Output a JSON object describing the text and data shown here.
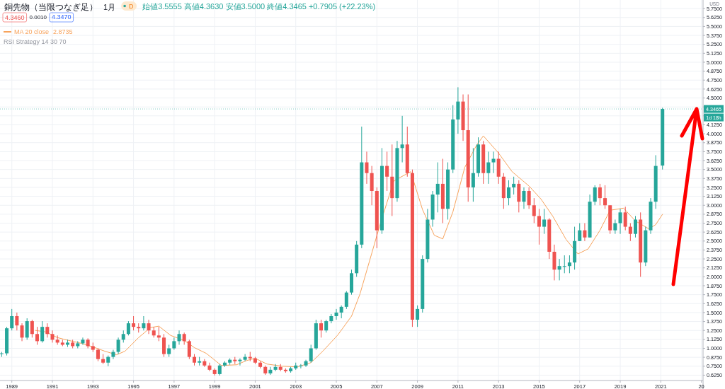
{
  "chart_data": {
    "type": "candlestick",
    "title": "銅先物（当限つなぎ足）",
    "subtitle": "1月",
    "ylabel": "USD",
    "annotations": [
      "D",
      "始値3.5555 高値4.3630 安値3.5000 終値4.3465 +0.7905 (+22.23%)",
      "4.3460",
      "0.0010",
      "4.3470",
      "2.8735",
      "RSI Strategy 14 30 70",
      "1d 18h"
    ],
    "x": [
      "1988-07",
      "1988-10",
      "1989-01",
      "1989-04",
      "1989-07",
      "1989-10",
      "1990-01",
      "1990-04",
      "1990-07",
      "1990-10",
      "1991-01",
      "1991-04",
      "1991-07",
      "1991-10",
      "1992-01",
      "1992-04",
      "1992-07",
      "1992-10",
      "1993-01",
      "1993-04",
      "1993-07",
      "1993-10",
      "1994-01",
      "1994-04",
      "1994-07",
      "1994-10",
      "1995-01",
      "1995-04",
      "1995-07",
      "1995-10",
      "1996-01",
      "1996-04",
      "1996-07",
      "1996-10",
      "1997-01",
      "1997-04",
      "1997-07",
      "1997-10",
      "1998-01",
      "1998-04",
      "1998-07",
      "1998-10",
      "1999-01",
      "1999-04",
      "1999-07",
      "1999-10",
      "2000-01",
      "2000-04",
      "2000-07",
      "2000-10",
      "2001-01",
      "2001-04",
      "2001-07",
      "2001-10",
      "2002-01",
      "2002-04",
      "2002-07",
      "2002-10",
      "2003-01",
      "2003-04",
      "2003-07",
      "2003-10",
      "2004-01",
      "2004-04",
      "2004-07",
      "2004-10",
      "2005-01",
      "2005-04",
      "2005-07",
      "2005-10",
      "2006-01",
      "2006-04",
      "2006-07",
      "2006-10",
      "2007-01",
      "2007-04",
      "2007-07",
      "2007-10",
      "2008-01",
      "2008-04",
      "2008-07",
      "2008-10",
      "2009-01",
      "2009-04",
      "2009-07",
      "2009-10",
      "2010-01",
      "2010-04",
      "2010-07",
      "2010-10",
      "2011-01",
      "2011-04",
      "2011-07",
      "2011-10",
      "2012-01",
      "2012-04",
      "2012-07",
      "2012-10",
      "2013-01",
      "2013-04",
      "2013-07",
      "2013-10",
      "2014-01",
      "2014-04",
      "2014-07",
      "2014-10",
      "2015-01",
      "2015-04",
      "2015-07",
      "2015-10",
      "2016-01",
      "2016-04",
      "2016-07",
      "2016-10",
      "2017-01",
      "2017-04",
      "2017-07",
      "2017-10",
      "2018-01",
      "2018-04",
      "2018-07",
      "2018-10",
      "2019-01",
      "2019-04",
      "2019-07",
      "2019-10",
      "2020-01",
      "2020-04",
      "2020-07",
      "2020-10",
      "2021-02"
    ],
    "ohlc": [
      [
        0.92,
        0.95,
        0.88,
        0.93
      ],
      [
        0.93,
        1.3,
        0.9,
        1.28
      ],
      [
        1.28,
        1.55,
        1.25,
        1.45
      ],
      [
        1.45,
        1.5,
        1.25,
        1.32
      ],
      [
        1.32,
        1.35,
        1.1,
        1.15
      ],
      [
        1.15,
        1.42,
        1.12,
        1.38
      ],
      [
        1.38,
        1.4,
        1.15,
        1.2
      ],
      [
        1.2,
        1.3,
        1.05,
        1.1
      ],
      [
        1.1,
        1.38,
        1.08,
        1.3
      ],
      [
        1.3,
        1.35,
        1.15,
        1.2
      ],
      [
        1.2,
        1.25,
        1.08,
        1.12
      ],
      [
        1.12,
        1.18,
        1.05,
        1.08
      ],
      [
        1.08,
        1.12,
        1.03,
        1.05
      ],
      [
        1.05,
        1.12,
        1.02,
        1.08
      ],
      [
        1.08,
        1.12,
        1.0,
        1.03
      ],
      [
        1.03,
        1.1,
        1.0,
        1.07
      ],
      [
        1.07,
        1.15,
        1.05,
        1.12
      ],
      [
        1.12,
        1.14,
        1.0,
        1.03
      ],
      [
        1.03,
        1.08,
        0.95,
        0.98
      ],
      [
        0.98,
        1.0,
        0.82,
        0.85
      ],
      [
        0.85,
        0.92,
        0.78,
        0.8
      ],
      [
        0.8,
        0.9,
        0.75,
        0.88
      ],
      [
        0.88,
        0.98,
        0.85,
        0.95
      ],
      [
        0.95,
        1.15,
        0.92,
        1.12
      ],
      [
        1.12,
        1.25,
        1.08,
        1.2
      ],
      [
        1.2,
        1.38,
        1.18,
        1.35
      ],
      [
        1.35,
        1.45,
        1.25,
        1.3
      ],
      [
        1.3,
        1.35,
        1.22,
        1.28
      ],
      [
        1.28,
        1.45,
        1.25,
        1.35
      ],
      [
        1.35,
        1.4,
        1.2,
        1.25
      ],
      [
        1.25,
        1.3,
        1.15,
        1.18
      ],
      [
        1.18,
        1.3,
        1.1,
        1.15
      ],
      [
        1.15,
        1.2,
        0.88,
        0.92
      ],
      [
        0.92,
        1.05,
        0.88,
        1.0
      ],
      [
        1.0,
        1.15,
        0.98,
        1.1
      ],
      [
        1.1,
        1.25,
        1.05,
        1.2
      ],
      [
        1.2,
        1.22,
        1.05,
        1.1
      ],
      [
        1.1,
        1.12,
        0.85,
        0.88
      ],
      [
        0.88,
        0.92,
        0.76,
        0.8
      ],
      [
        0.8,
        0.88,
        0.76,
        0.82
      ],
      [
        0.82,
        0.85,
        0.74,
        0.76
      ],
      [
        0.76,
        0.8,
        0.68,
        0.7
      ],
      [
        0.7,
        0.72,
        0.62,
        0.64
      ],
      [
        0.64,
        0.78,
        0.62,
        0.76
      ],
      [
        0.76,
        0.82,
        0.74,
        0.8
      ],
      [
        0.8,
        0.86,
        0.77,
        0.84
      ],
      [
        0.84,
        0.88,
        0.78,
        0.82
      ],
      [
        0.82,
        0.86,
        0.76,
        0.84
      ],
      [
        0.84,
        0.92,
        0.82,
        0.88
      ],
      [
        0.88,
        0.95,
        0.82,
        0.86
      ],
      [
        0.86,
        0.88,
        0.78,
        0.8
      ],
      [
        0.8,
        0.82,
        0.72,
        0.74
      ],
      [
        0.74,
        0.76,
        0.63,
        0.65
      ],
      [
        0.65,
        0.74,
        0.63,
        0.7
      ],
      [
        0.7,
        0.78,
        0.68,
        0.74
      ],
      [
        0.74,
        0.78,
        0.68,
        0.7
      ],
      [
        0.7,
        0.72,
        0.66,
        0.68
      ],
      [
        0.68,
        0.74,
        0.66,
        0.72
      ],
      [
        0.72,
        0.8,
        0.7,
        0.76
      ],
      [
        0.76,
        0.78,
        0.72,
        0.76
      ],
      [
        0.76,
        0.84,
        0.74,
        0.82
      ],
      [
        0.82,
        1.05,
        0.8,
        1.0
      ],
      [
        1.0,
        1.4,
        0.98,
        1.35
      ],
      [
        1.35,
        1.4,
        1.15,
        1.25
      ],
      [
        1.25,
        1.4,
        1.22,
        1.38
      ],
      [
        1.38,
        1.48,
        1.35,
        1.45
      ],
      [
        1.45,
        1.55,
        1.4,
        1.5
      ],
      [
        1.5,
        1.6,
        1.42,
        1.58
      ],
      [
        1.58,
        1.8,
        1.55,
        1.78
      ],
      [
        1.78,
        2.1,
        1.75,
        2.05
      ],
      [
        2.05,
        2.5,
        2.0,
        2.45
      ],
      [
        2.45,
        4.1,
        2.4,
        3.6
      ],
      [
        3.6,
        3.75,
        3.3,
        3.45
      ],
      [
        3.45,
        3.55,
        3.0,
        3.2
      ],
      [
        3.2,
        3.25,
        2.4,
        2.65
      ],
      [
        2.65,
        3.8,
        2.6,
        3.55
      ],
      [
        3.55,
        3.75,
        3.2,
        3.4
      ],
      [
        3.4,
        3.85,
        2.85,
        3.1
      ],
      [
        3.1,
        3.9,
        3.05,
        3.8
      ],
      [
        3.8,
        4.25,
        3.6,
        3.85
      ],
      [
        3.85,
        4.1,
        3.4,
        3.45
      ],
      [
        3.45,
        3.5,
        1.3,
        1.4
      ],
      [
        1.4,
        1.6,
        1.3,
        1.55
      ],
      [
        1.55,
        2.3,
        1.5,
        2.25
      ],
      [
        2.25,
        2.95,
        2.2,
        2.8
      ],
      [
        2.8,
        3.2,
        2.7,
        3.15
      ],
      [
        3.15,
        3.6,
        2.9,
        3.3
      ],
      [
        3.3,
        3.65,
        2.75,
        2.95
      ],
      [
        2.95,
        3.6,
        2.8,
        3.5
      ],
      [
        3.5,
        4.4,
        3.45,
        4.2
      ],
      [
        4.2,
        4.65,
        4.0,
        4.45
      ],
      [
        4.45,
        4.55,
        3.9,
        4.05
      ],
      [
        4.05,
        4.55,
        3.05,
        3.25
      ],
      [
        3.25,
        3.8,
        3.05,
        3.45
      ],
      [
        3.45,
        3.95,
        3.4,
        3.85
      ],
      [
        3.85,
        3.9,
        3.3,
        3.45
      ],
      [
        3.45,
        3.75,
        3.3,
        3.6
      ],
      [
        3.6,
        3.75,
        3.45,
        3.65
      ],
      [
        3.65,
        3.75,
        3.3,
        3.4
      ],
      [
        3.4,
        3.45,
        2.95,
        3.1
      ],
      [
        3.1,
        3.35,
        3.0,
        3.25
      ],
      [
        3.25,
        3.4,
        3.15,
        3.3
      ],
      [
        3.3,
        3.35,
        2.9,
        3.05
      ],
      [
        3.05,
        3.25,
        2.95,
        3.2
      ],
      [
        3.2,
        3.25,
        2.95,
        3.0
      ],
      [
        3.0,
        3.1,
        2.75,
        2.85
      ],
      [
        2.85,
        2.95,
        2.45,
        2.7
      ],
      [
        2.7,
        2.95,
        2.6,
        2.8
      ],
      [
        2.8,
        2.82,
        2.25,
        2.35
      ],
      [
        2.35,
        2.45,
        1.95,
        2.1
      ],
      [
        2.1,
        2.25,
        1.95,
        2.15
      ],
      [
        2.15,
        2.3,
        2.05,
        2.15
      ],
      [
        2.15,
        2.3,
        2.05,
        2.2
      ],
      [
        2.2,
        2.7,
        2.1,
        2.5
      ],
      [
        2.5,
        2.75,
        2.5,
        2.65
      ],
      [
        2.65,
        2.75,
        2.5,
        2.55
      ],
      [
        2.55,
        3.15,
        2.55,
        3.05
      ],
      [
        3.05,
        3.28,
        3.0,
        3.25
      ],
      [
        3.25,
        3.3,
        3.0,
        3.1
      ],
      [
        3.1,
        3.28,
        2.95,
        3.0
      ],
      [
        3.0,
        3.0,
        2.6,
        2.65
      ],
      [
        2.65,
        2.8,
        2.6,
        2.75
      ],
      [
        2.75,
        2.95,
        2.6,
        2.9
      ],
      [
        2.9,
        2.98,
        2.65,
        2.7
      ],
      [
        2.7,
        2.75,
        2.5,
        2.6
      ],
      [
        2.6,
        2.85,
        2.55,
        2.8
      ],
      [
        2.8,
        2.9,
        2.0,
        2.2
      ],
      [
        2.2,
        2.7,
        2.15,
        2.65
      ],
      [
        2.65,
        3.1,
        2.6,
        3.05
      ],
      [
        3.05,
        3.7,
        2.95,
        3.55
      ],
      [
        3.5555,
        4.363,
        3.5,
        4.3465
      ]
    ],
    "colors": [
      "#26a69a",
      "#26a69a",
      "#26a69a",
      "#ef5350",
      "#ef5350",
      "#26a69a",
      "#ef5350",
      "#ef5350",
      "#26a69a",
      "#ef5350",
      "#ef5350",
      "#ef5350",
      "#ef5350",
      "#26a69a",
      "#ef5350",
      "#26a69a",
      "#26a69a",
      "#ef5350",
      "#ef5350",
      "#ef5350",
      "#ef5350",
      "#26a69a",
      "#26a69a",
      "#26a69a",
      "#26a69a",
      "#26a69a",
      "#ef5350",
      "#ef5350",
      "#26a69a",
      "#ef5350",
      "#ef5350",
      "#ef5350",
      "#ef5350",
      "#26a69a",
      "#26a69a",
      "#26a69a",
      "#ef5350",
      "#ef5350",
      "#ef5350",
      "#26a69a",
      "#ef5350",
      "#ef5350",
      "#ef5350",
      "#26a69a",
      "#26a69a",
      "#26a69a",
      "#ef5350",
      "#26a69a",
      "#26a69a",
      "#ef5350",
      "#ef5350",
      "#ef5350",
      "#ef5350",
      "#26a69a",
      "#26a69a",
      "#ef5350",
      "#ef5350",
      "#26a69a",
      "#26a69a",
      "#26a69a",
      "#26a69a",
      "#26a69a",
      "#26a69a",
      "#ef5350",
      "#26a69a",
      "#26a69a",
      "#26a69a",
      "#26a69a",
      "#26a69a",
      "#26a69a",
      "#26a69a",
      "#26a69a",
      "#ef5350",
      "#ef5350",
      "#ef5350",
      "#26a69a",
      "#ef5350",
      "#ef5350",
      "#26a69a",
      "#26a69a",
      "#ef5350",
      "#ef5350",
      "#26a69a",
      "#26a69a",
      "#26a69a",
      "#26a69a",
      "#26a69a",
      "#ef5350",
      "#26a69a",
      "#26a69a",
      "#26a69a",
      "#ef5350",
      "#ef5350",
      "#26a69a",
      "#26a69a",
      "#ef5350",
      "#26a69a",
      "#26a69a",
      "#ef5350",
      "#ef5350",
      "#26a69a",
      "#26a69a",
      "#ef5350",
      "#26a69a",
      "#ef5350",
      "#ef5350",
      "#ef5350",
      "#26a69a",
      "#ef5350",
      "#ef5350",
      "#26a69a",
      "#26a69a",
      "#26a69a",
      "#26a69a",
      "#26a69a",
      "#ef5350",
      "#26a69a",
      "#26a69a",
      "#ef5350",
      "#ef5350",
      "#ef5350",
      "#26a69a",
      "#26a69a",
      "#ef5350",
      "#ef5350",
      "#26a69a",
      "#ef5350",
      "#26a69a",
      "#26a69a",
      "#26a69a",
      "#26a69a"
    ],
    "series": [
      {
        "name": "MA 20 close",
        "type": "line",
        "color": "#f7a35c",
        "x": [
          "1990-03",
          "1990-09",
          "1991-04",
          "1991-09",
          "1992-06",
          "1993-01",
          "1993-08",
          "1994-03",
          "1994-08",
          "1995-04",
          "1995-11",
          "1996-04",
          "1996-11",
          "1997-07",
          "1998-01",
          "1998-08",
          "1999-05",
          "2000-02",
          "2000-08",
          "2001-01",
          "2001-08",
          "2002-05",
          "2003-02",
          "2003-10",
          "2004-05",
          "2005-02",
          "2005-10",
          "2006-03",
          "2007-03",
          "2007-11",
          "2008-09",
          "2009-04",
          "2009-11",
          "2010-04",
          "2010-10",
          "2011-05",
          "2011-12",
          "2012-04",
          "2013-01",
          "2013-09",
          "2014-07",
          "2015-02",
          "2015-09",
          "2016-05",
          "2016-12",
          "2017-06",
          "2018-01",
          "2018-07",
          "2019-03",
          "2019-10",
          "2020-06",
          "2020-10",
          "2021-02"
        ],
        "values": [
          1.25,
          1.23,
          1.15,
          1.12,
          1.07,
          1.02,
          0.96,
          0.91,
          0.96,
          1.15,
          1.29,
          1.31,
          1.18,
          1.11,
          1.01,
          0.93,
          0.76,
          0.77,
          0.83,
          0.86,
          0.78,
          0.75,
          0.74,
          0.8,
          0.96,
          1.19,
          1.45,
          1.76,
          2.74,
          3.34,
          3.47,
          2.94,
          2.58,
          2.53,
          2.91,
          3.53,
          3.84,
          3.97,
          3.73,
          3.47,
          3.27,
          3.09,
          2.85,
          2.52,
          2.32,
          2.39,
          2.65,
          2.93,
          2.96,
          2.78,
          2.67,
          2.73,
          2.8735
        ]
      }
    ],
    "xlim": [
      "1988-06",
      "2023-02"
    ],
    "ylim": [
      0.55,
      5.87
    ],
    "xticks": [
      {
        "value": "1989-01",
        "label": "1989"
      },
      {
        "value": "1991-01",
        "label": "1991"
      },
      {
        "value": "1993-01",
        "label": "1993"
      },
      {
        "value": "1995-01",
        "label": "1995"
      },
      {
        "value": "1997-01",
        "label": "1997"
      },
      {
        "value": "1999-01",
        "label": "1999"
      },
      {
        "value": "2001-01",
        "label": "2001"
      },
      {
        "value": "2003-01",
        "label": "2003"
      },
      {
        "value": "2005-01",
        "label": "2005"
      },
      {
        "value": "2007-01",
        "label": "2007"
      },
      {
        "value": "2009-01",
        "label": "2009"
      },
      {
        "value": "2011-01",
        "label": "2011"
      },
      {
        "value": "2013-01",
        "label": "2013"
      },
      {
        "value": "2015-01",
        "label": "2015"
      },
      {
        "value": "2017-01",
        "label": "2017"
      },
      {
        "value": "2019-01",
        "label": "2019"
      },
      {
        "value": "2021-01",
        "label": "2021"
      },
      {
        "value": "2023-01",
        "label": "20"
      }
    ],
    "yticks": [
      {
        "value": 0.625,
        "label": "0.6250"
      },
      {
        "value": 0.75,
        "label": "0.7500"
      },
      {
        "value": 0.875,
        "label": "0.8750"
      },
      {
        "value": 1.0,
        "label": "1.0000"
      },
      {
        "value": 1.125,
        "label": "1.1250"
      },
      {
        "value": 1.25,
        "label": "1.2500"
      },
      {
        "value": 1.375,
        "label": "1.3750"
      },
      {
        "value": 1.5,
        "label": "1.5000"
      },
      {
        "value": 1.625,
        "label": "1.6250"
      },
      {
        "value": 1.75,
        "label": "1.7500"
      },
      {
        "value": 1.875,
        "label": "1.8750"
      },
      {
        "value": 2.0,
        "label": "2.0000"
      },
      {
        "value": 2.125,
        "label": "2.1250"
      },
      {
        "value": 2.25,
        "label": "2.2500"
      },
      {
        "value": 2.375,
        "label": "2.3750"
      },
      {
        "value": 2.5,
        "label": "2.5000"
      },
      {
        "value": 2.625,
        "label": "2.6250"
      },
      {
        "value": 2.75,
        "label": "2.7500"
      },
      {
        "value": 2.875,
        "label": "2.8750"
      },
      {
        "value": 3.0,
        "label": "3.0000"
      },
      {
        "value": 3.125,
        "label": "3.1250"
      },
      {
        "value": 3.25,
        "label": "3.2500"
      },
      {
        "value": 3.375,
        "label": "3.3750"
      },
      {
        "value": 3.5,
        "label": "3.5000"
      },
      {
        "value": 3.625,
        "label": "3.6250"
      },
      {
        "value": 3.75,
        "label": "3.7500"
      },
      {
        "value": 3.875,
        "label": "3.8750"
      },
      {
        "value": 4.0,
        "label": "4.0000"
      },
      {
        "value": 4.125,
        "label": "4.1250"
      },
      {
        "value": 4.25,
        "label": null
      },
      {
        "value": 4.375,
        "label": null
      },
      {
        "value": 4.5,
        "label": "4.5000"
      },
      {
        "value": 4.625,
        "label": "4.6250"
      },
      {
        "value": 4.75,
        "label": "4.7500"
      },
      {
        "value": 4.875,
        "label": "4.8750"
      },
      {
        "value": 5.0,
        "label": "5.0000"
      },
      {
        "value": 5.125,
        "label": "5.1250"
      },
      {
        "value": 5.25,
        "label": "5.2500"
      },
      {
        "value": 5.375,
        "label": "5.3750"
      },
      {
        "value": 5.5,
        "label": "5.5000"
      },
      {
        "value": 5.625,
        "label": "5.6250"
      },
      {
        "value": 5.75,
        "label": "5.7500"
      }
    ],
    "grid": true,
    "legend": "top left",
    "marker": "none",
    "line_style": "solid",
    "ref_lines": [
      {
        "axis": "y",
        "value": 4.3465,
        "label": "4.3465",
        "color": "#26a69a",
        "line_style": "dotted"
      }
    ]
  }
}
